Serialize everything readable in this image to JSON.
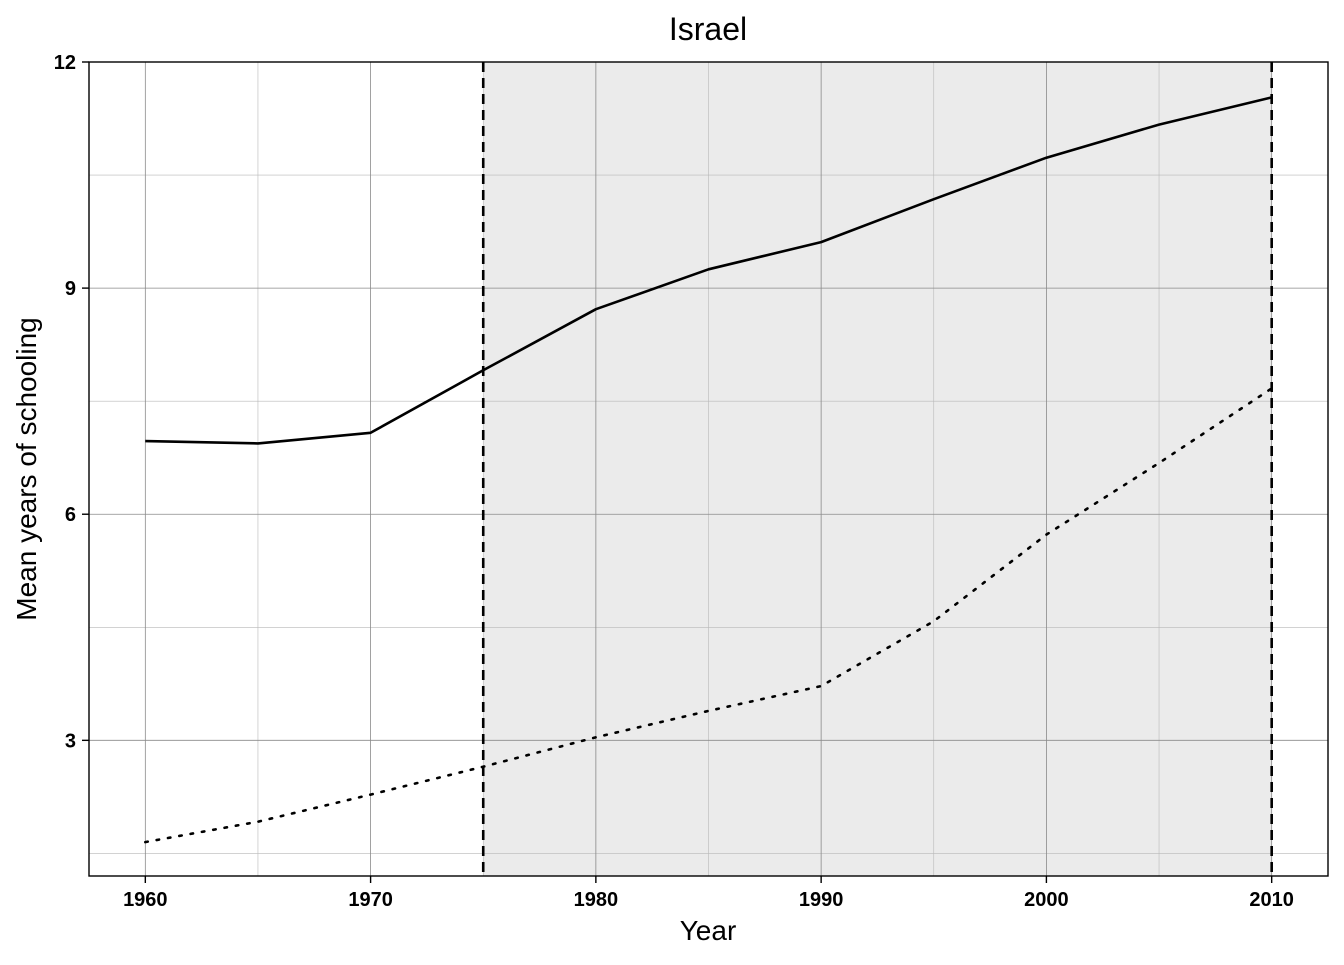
{
  "chart_data": {
    "type": "line",
    "title": "Israel",
    "xlabel": "Year",
    "ylabel": "Mean years of schooling",
    "xlim": [
      1957.5,
      2012.5
    ],
    "ylim": [
      1.2,
      12
    ],
    "x_ticks": [
      1960,
      1970,
      1980,
      1990,
      2000,
      2010
    ],
    "y_ticks": [
      3,
      6,
      9,
      12
    ],
    "x_minor_grid": [
      1965,
      1975,
      1985,
      1995,
      2005
    ],
    "y_minor_grid": [
      1.5,
      4.5,
      7.5,
      10.5
    ],
    "grid": true,
    "shaded_region": {
      "x_start": 1975,
      "x_end": 2010,
      "color": "#ebebeb"
    },
    "vertical_lines": [
      {
        "x": 1975,
        "style": "dashed"
      },
      {
        "x": 2010,
        "style": "dashed"
      }
    ],
    "x": [
      1960,
      1965,
      1970,
      1975,
      1980,
      1985,
      1990,
      1995,
      2000,
      2005,
      2010
    ],
    "series": [
      {
        "style": "solid",
        "values": [
          6.97,
          6.94,
          7.08,
          7.91,
          8.72,
          9.25,
          9.61,
          10.18,
          10.73,
          11.17,
          11.53
        ]
      },
      {
        "style": "dotted",
        "values": [
          1.65,
          1.92,
          2.28,
          2.65,
          3.04,
          3.39,
          3.72,
          4.58,
          5.73,
          6.68,
          7.67
        ]
      }
    ]
  }
}
